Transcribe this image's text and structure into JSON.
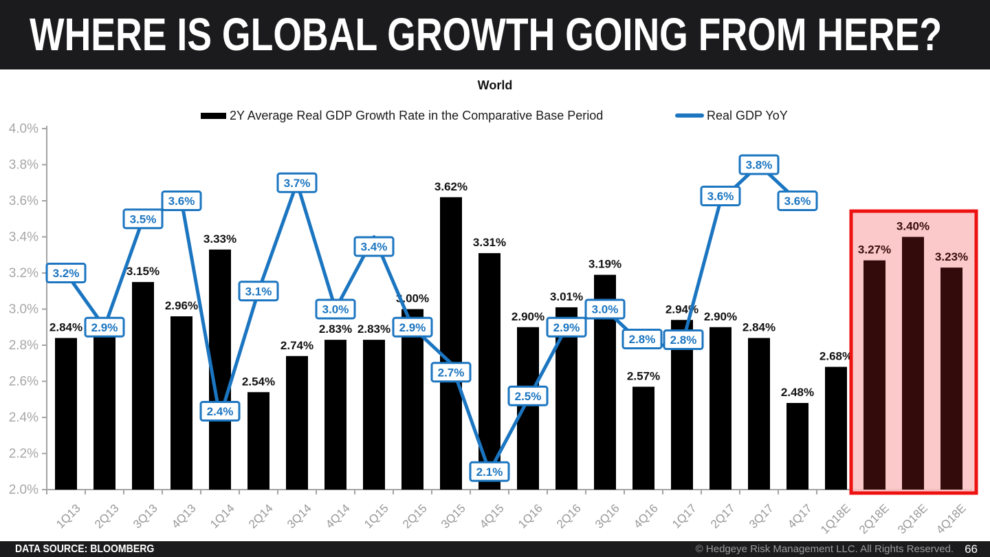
{
  "header": {
    "title": "WHERE IS GLOBAL GROWTH GOING FROM HERE?"
  },
  "footer": {
    "source": "DATA SOURCE: BLOOMBERG",
    "copyright": "© Hedgeye Risk Management LLC. All Rights Reserved.",
    "page_number": "66"
  },
  "colors": {
    "line_blue": "#1b75c0",
    "bar_black": "#000000",
    "bar_label_dark": "#111111",
    "axis_gray": "#a3a3a3",
    "tick_label_gray": "#999999",
    "highlight_border_red": "#ee1111",
    "highlight_fill_pink": "#fbc1c1",
    "highlight_bar_maroon": "#330b0b",
    "highlight_label_maroon": "#3a0d0d",
    "header_bg": "#1b1b1d"
  },
  "chart_data": {
    "type": "bar",
    "title": "World",
    "categories": [
      "1Q13",
      "2Q13",
      "3Q13",
      "4Q13",
      "1Q14",
      "2Q14",
      "3Q14",
      "4Q14",
      "1Q15",
      "2Q15",
      "3Q15",
      "4Q15",
      "1Q16",
      "2Q16",
      "3Q16",
      "4Q16",
      "1Q17",
      "2Q17",
      "3Q17",
      "4Q17",
      "1Q18E",
      "2Q18E",
      "3Q18E",
      "4Q18E"
    ],
    "ylim": [
      2.0,
      4.0
    ],
    "ytick_step": 0.2,
    "ytick_labels": [
      "4.0%",
      "3.8%",
      "3.6%",
      "3.4%",
      "3.2%",
      "3.0%",
      "2.8%",
      "2.6%",
      "2.4%",
      "2.2%",
      "2.0%"
    ],
    "grid": false,
    "legend_position": "top",
    "series": [
      {
        "name": "2Y Average Real GDP Growth Rate in the Comparative Base Period",
        "type": "bar",
        "values": [
          2.84,
          2.85,
          3.15,
          2.96,
          3.33,
          2.54,
          2.74,
          2.83,
          2.83,
          3.0,
          3.62,
          3.31,
          2.9,
          3.01,
          3.19,
          2.57,
          2.94,
          2.9,
          2.84,
          2.48,
          2.68,
          3.27,
          3.4,
          3.23
        ],
        "labels": [
          "2.84%",
          "",
          "3.15%",
          "2.96%",
          "3.33%",
          "2.54%",
          "2.74%",
          "2.83%",
          "2.83%",
          "3.00%",
          "3.62%",
          "3.31%",
          "2.90%",
          "3.01%",
          "3.19%",
          "2.57%",
          "2.94%",
          "2.90%",
          "2.84%",
          "2.48%",
          "2.68%",
          "3.27%",
          "3.40%",
          "3.23%"
        ]
      },
      {
        "name": "Real GDP YoY",
        "type": "line",
        "values": [
          3.2,
          2.9,
          3.5,
          3.6,
          2.4,
          3.1,
          3.7,
          3.0,
          3.4,
          2.9,
          2.7,
          2.1,
          2.5,
          2.9,
          3.0,
          2.8,
          2.8,
          3.6,
          3.8,
          3.6,
          null,
          null,
          null,
          null
        ],
        "labels": [
          "3.2%",
          "2.9%",
          "3.5%",
          "3.6%",
          "2.4%",
          "3.1%",
          "3.7%",
          "3.0%",
          "3.4%",
          "2.9%",
          "2.7%",
          "2.1%",
          "2.5%",
          "2.9%",
          "3.0%",
          "2.8%",
          "2.8%",
          "3.6%",
          "3.8%",
          "3.6%"
        ]
      }
    ],
    "highlight": {
      "note": "estimate quarters highlighted",
      "start_category": "2Q18E",
      "end_category": "4Q18E",
      "start_index": 21
    }
  }
}
